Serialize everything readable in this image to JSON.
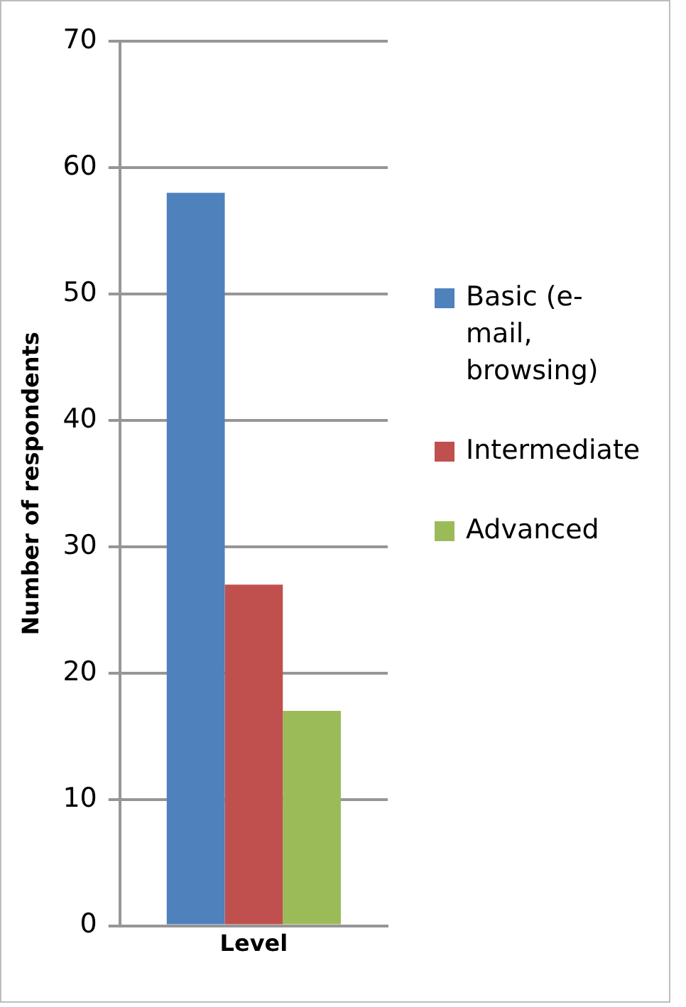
{
  "chart_data": {
    "type": "bar",
    "ylabel": "Number of respondents",
    "categories": [
      "Level"
    ],
    "series": [
      {
        "name": "Basic (e-mail, browsing)",
        "color": "#4f81bd",
        "values": [
          58
        ]
      },
      {
        "name": "Intermediate",
        "color": "#c0504d",
        "values": [
          27
        ]
      },
      {
        "name": "Advanced",
        "color": "#9bbb59",
        "values": [
          17
        ]
      }
    ],
    "ylim": [
      0,
      70
    ],
    "yticks": [
      0,
      10,
      20,
      30,
      40,
      50,
      60,
      70
    ],
    "grid": "y",
    "legend": "right"
  }
}
